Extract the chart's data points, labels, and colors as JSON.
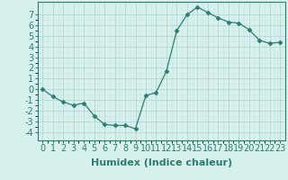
{
  "x": [
    0,
    1,
    2,
    3,
    4,
    5,
    6,
    7,
    8,
    9,
    10,
    11,
    12,
    13,
    14,
    15,
    16,
    17,
    18,
    19,
    20,
    21,
    22,
    23
  ],
  "y": [
    0,
    -0.7,
    -1.2,
    -1.5,
    -1.3,
    -2.5,
    -3.3,
    -3.4,
    -3.4,
    -3.7,
    -0.6,
    -0.3,
    1.7,
    5.5,
    7.0,
    7.7,
    7.2,
    6.7,
    6.3,
    6.2,
    5.6,
    4.6,
    4.3,
    4.4
  ],
  "line_color": "#2e7d6e",
  "marker": "D",
  "marker_size": 2.5,
  "bg_color": "#d6f0ed",
  "grid_color_major": "#b8d8d5",
  "grid_color_minor": "#c8e4e1",
  "xlabel": "Humidex (Indice chaleur)",
  "xlim": [
    -0.5,
    23.5
  ],
  "ylim": [
    -4.8,
    8.2
  ],
  "yticks": [
    -4,
    -3,
    -2,
    -1,
    0,
    1,
    2,
    3,
    4,
    5,
    6,
    7
  ],
  "xticks": [
    0,
    1,
    2,
    3,
    4,
    5,
    6,
    7,
    8,
    9,
    10,
    11,
    12,
    13,
    14,
    15,
    16,
    17,
    18,
    19,
    20,
    21,
    22,
    23
  ],
  "font_size": 7.0,
  "xlabel_fontsize": 8.0,
  "spine_color": "#2e7d6e",
  "tick_color": "#2e7d6e"
}
